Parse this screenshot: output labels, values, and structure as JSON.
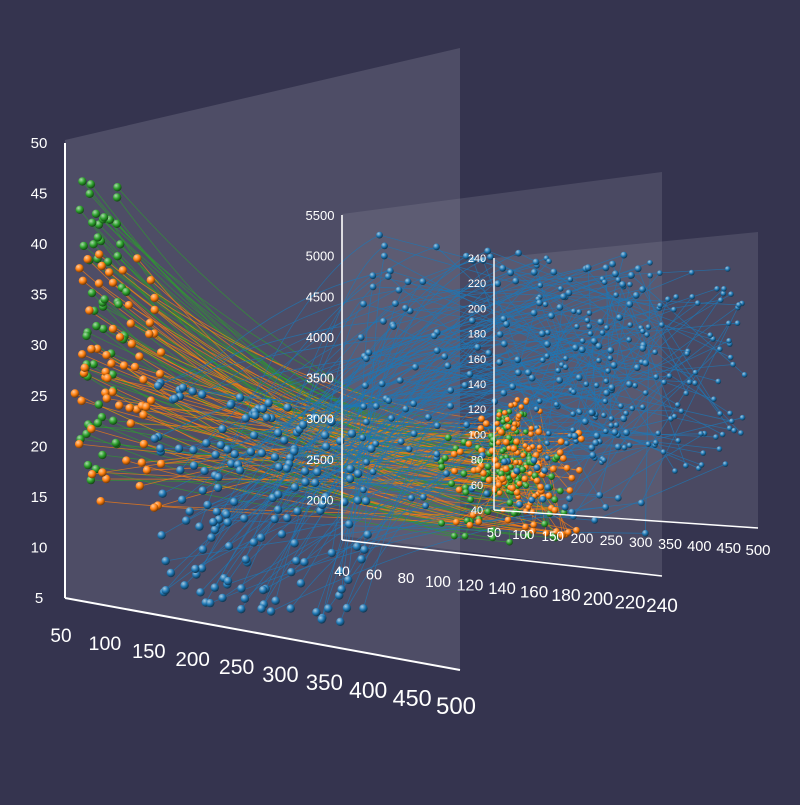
{
  "chart_data": {
    "type": "scatter",
    "title": "",
    "description_free": true,
    "background": "#35344f",
    "panel_color": "#8e8ea0",
    "axis_color": "#ffffff",
    "series_colors": {
      "green": "#2ca02c",
      "orange": "#ff7f0e",
      "blue": "#1f77b4"
    },
    "panels": [
      {
        "id": "panel-1",
        "x_ticks": [
          "50",
          "100",
          "150",
          "200",
          "250",
          "300",
          "350",
          "400",
          "450",
          "500"
        ],
        "y_ticks": [
          "5",
          "10",
          "15",
          "20",
          "25",
          "30",
          "35",
          "40",
          "45",
          "50"
        ],
        "x_range": [
          50,
          500
        ],
        "y_range": [
          5,
          50
        ]
      },
      {
        "id": "panel-2",
        "x_ticks": [
          "40",
          "60",
          "80",
          "100",
          "120",
          "140",
          "160",
          "180",
          "200",
          "220",
          "240"
        ],
        "y_ticks": [
          "2000",
          "2500",
          "3000",
          "3500",
          "4000",
          "4500",
          "5000",
          "5500"
        ],
        "x_range": [
          40,
          240
        ],
        "y_range": [
          1500,
          5500
        ]
      },
      {
        "id": "panel-3",
        "x_ticks": [
          "50",
          "100",
          "150",
          "200",
          "250",
          "300",
          "350",
          "400",
          "450",
          "500"
        ],
        "y_ticks": [
          "40",
          "60",
          "80",
          "100",
          "120",
          "140",
          "160",
          "180",
          "200",
          "220",
          "240"
        ],
        "x_range": [
          50,
          500
        ],
        "y_range": [
          40,
          240
        ]
      }
    ],
    "series": [
      {
        "color": "green",
        "count": 60,
        "p1": {
          "x": [
            65,
            120
          ],
          "y": [
            17,
            47
          ]
        },
        "p2": {
          "x": [
            100,
            180
          ],
          "y": [
            1700,
            3000
          ]
        },
        "p3": {
          "x": [
            55,
            110
          ],
          "y": [
            50,
            120
          ]
        }
      },
      {
        "color": "orange",
        "count": 65,
        "p1": {
          "x": [
            60,
            160
          ],
          "y": [
            15,
            40
          ]
        },
        "p2": {
          "x": [
            110,
            190
          ],
          "y": [
            1800,
            3200
          ]
        },
        "p3": {
          "x": [
            50,
            130
          ],
          "y": [
            40,
            130
          ]
        }
      },
      {
        "color": "blue",
        "count": 160,
        "p1": {
          "x": [
            150,
            400
          ],
          "y": [
            7,
            28
          ]
        },
        "p2": {
          "x": [
            50,
            230
          ],
          "y": [
            2000,
            5400
          ]
        },
        "p3": {
          "x": [
            120,
            480
          ],
          "y": [
            80,
            245
          ]
        }
      }
    ],
    "grid": false,
    "legend": "none"
  }
}
